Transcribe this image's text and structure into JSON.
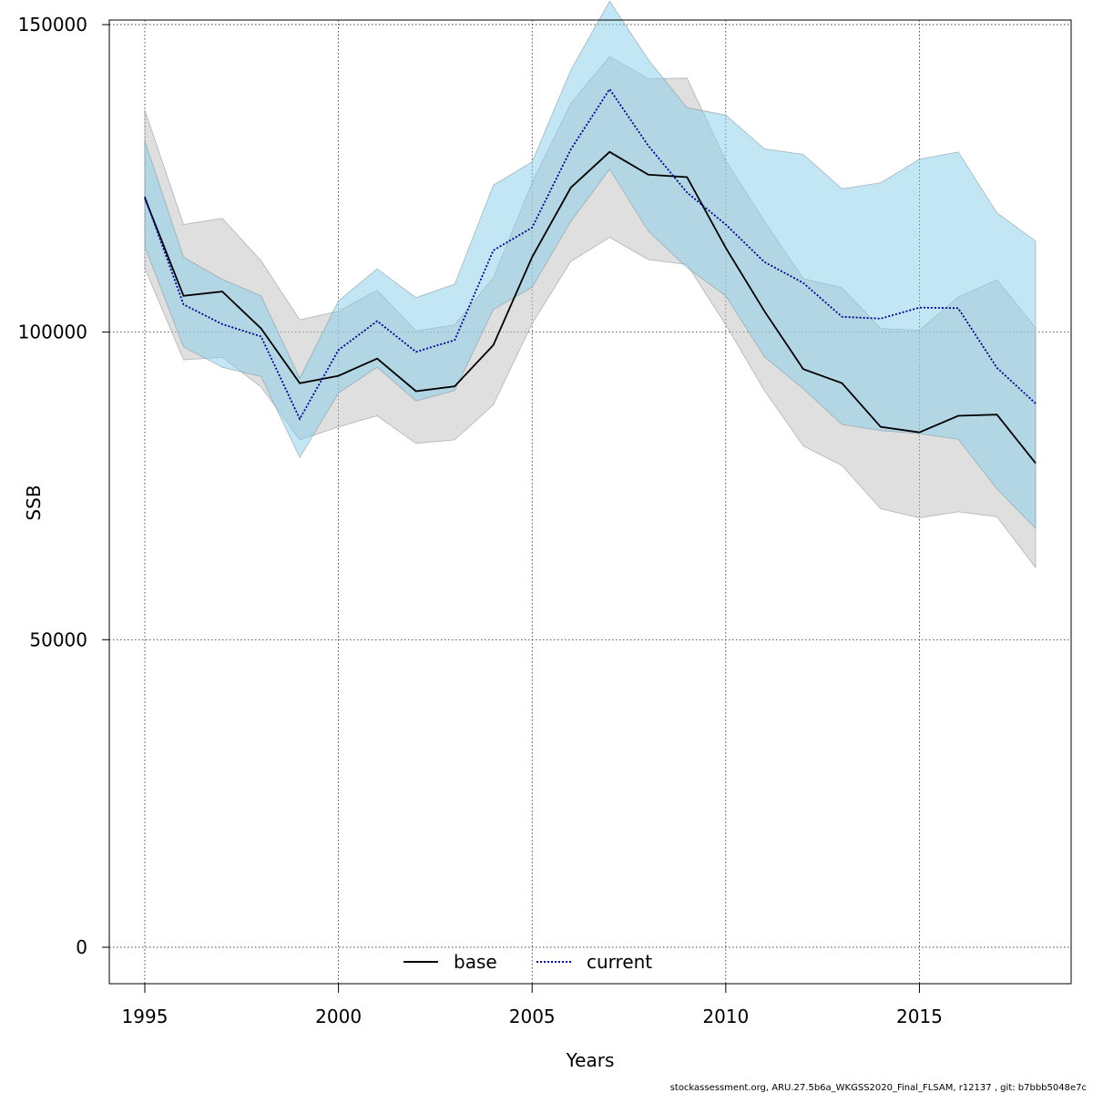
{
  "chart_data": {
    "type": "area",
    "xlabel": "Years",
    "ylabel": "SSB",
    "xlim": [
      1994.1,
      1018.9
    ],
    "ylim": [
      -6000,
      150500
    ],
    "x_ticks": [
      1995,
      2000,
      2005,
      2010,
      2015
    ],
    "y_ticks": [
      0,
      50000,
      100000,
      150000
    ],
    "grid": true,
    "legend_position": "bottom-center",
    "x": [
      1995,
      1996,
      1997,
      1998,
      1999,
      2000,
      2001,
      2002,
      2003,
      2004,
      2005,
      2006,
      2007,
      2008,
      2009,
      2010,
      2011,
      2012,
      2013,
      2014,
      2015,
      2016,
      2017,
      2018
    ],
    "series": [
      {
        "name": "base",
        "color": "#000000",
        "band_color": "#bfbfbf",
        "line_style": "solid",
        "values": [
          121800,
          105900,
          106600,
          100600,
          91700,
          92900,
          95700,
          90400,
          91200,
          97900,
          112200,
          123500,
          129300,
          125600,
          125200,
          113700,
          103400,
          94000,
          91700,
          84600,
          83700,
          86400,
          86600,
          78700
        ],
        "lower": [
          110400,
          95500,
          95900,
          91100,
          82500,
          84600,
          86400,
          81900,
          82500,
          88200,
          101400,
          111500,
          115400,
          111800,
          111000,
          101200,
          90500,
          81500,
          78300,
          71300,
          69800,
          70800,
          70000,
          61700
        ],
        "upper": [
          136100,
          117500,
          118500,
          111600,
          102000,
          103400,
          106800,
          100200,
          101200,
          108900,
          124300,
          137200,
          144800,
          141200,
          141300,
          127900,
          118000,
          108700,
          107200,
          100600,
          100300,
          105700,
          108500,
          100700
        ]
      },
      {
        "name": "current",
        "color": "#00008b",
        "band_color": "#87ceeb",
        "line_style": "dotted",
        "values": [
          122000,
          104500,
          101300,
          99300,
          85900,
          97100,
          101800,
          96800,
          98700,
          113300,
          117000,
          129700,
          139500,
          130300,
          122700,
          117500,
          111400,
          108000,
          102500,
          102200,
          104000,
          103900,
          94200,
          88400
        ],
        "lower": [
          113900,
          97600,
          94300,
          92800,
          79600,
          90100,
          94300,
          88800,
          90500,
          103700,
          107300,
          118000,
          126500,
          116400,
          110500,
          105900,
          96000,
          90800,
          85000,
          84000,
          83500,
          82600,
          74500,
          68100
        ],
        "upper": [
          131100,
          112200,
          108600,
          105900,
          92500,
          105100,
          110300,
          105600,
          107800,
          123900,
          127700,
          142600,
          153800,
          144300,
          136500,
          135300,
          129800,
          128900,
          123300,
          124300,
          128100,
          129300,
          119400,
          114800
        ]
      }
    ],
    "footer": "stockassessment.org, ARU.27.5b6a_WKGSS2020_Final_FLSAM, r12137 , git: b7bbb5048e7c"
  }
}
